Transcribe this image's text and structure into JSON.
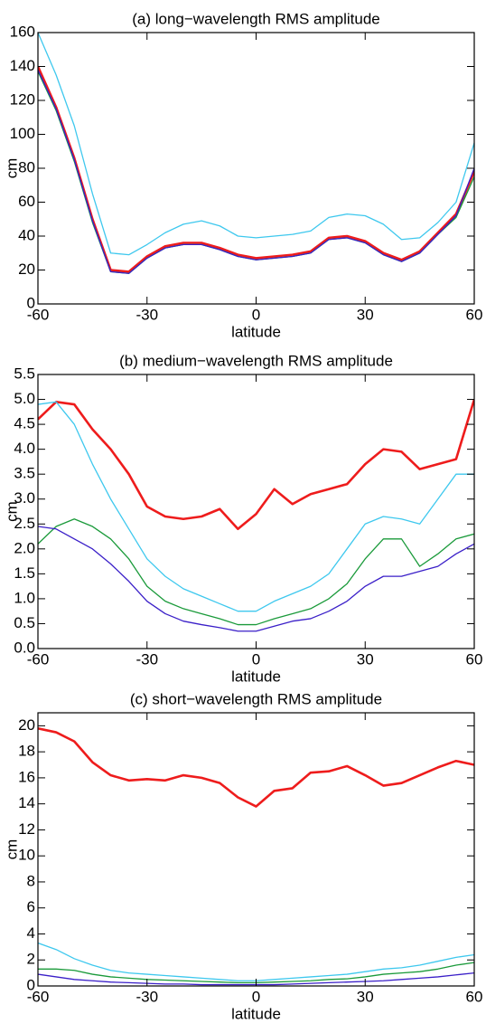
{
  "chart_data": [
    {
      "type": "line",
      "title": "(a) long−wavelength RMS amplitude",
      "xlabel": "latitude",
      "ylabel": "cm",
      "x": [
        -60,
        -55,
        -50,
        -45,
        -40,
        -35,
        -30,
        -25,
        -20,
        -15,
        -10,
        -5,
        0,
        5,
        10,
        15,
        20,
        25,
        30,
        35,
        40,
        45,
        50,
        55,
        60
      ],
      "xlim": [
        -60,
        60
      ],
      "ylim": [
        0,
        160
      ],
      "xticks": [
        -60,
        -30,
        0,
        30,
        60
      ],
      "yticks": [
        0,
        20,
        40,
        60,
        80,
        100,
        120,
        140,
        160
      ],
      "series": [
        {
          "color": "#ee1c1c",
          "values": [
            140,
            116,
            86,
            50,
            20,
            19,
            28,
            34,
            36,
            36,
            33,
            29,
            27,
            28,
            29,
            31,
            39,
            40,
            37,
            30,
            26,
            31,
            42,
            53,
            78
          ]
        },
        {
          "color": "#3ec8ee",
          "values": [
            160,
            135,
            105,
            65,
            30,
            29,
            35,
            42,
            47,
            49,
            46,
            40,
            39,
            40,
            41,
            43,
            51,
            53,
            52,
            47,
            38,
            39,
            48,
            60,
            95
          ]
        },
        {
          "color": "#1a9a3a",
          "values": [
            137,
            114,
            84,
            48,
            19,
            18,
            27,
            33,
            35,
            35,
            32,
            28,
            26,
            27,
            28,
            30,
            38,
            39,
            36,
            29,
            25,
            30,
            41,
            51,
            75
          ]
        },
        {
          "color": "#3a1fc8",
          "values": [
            138,
            115,
            85,
            49,
            19,
            18,
            27,
            33,
            35,
            35,
            32,
            28,
            26,
            27,
            28,
            30,
            38,
            39,
            36,
            29,
            25,
            30,
            41,
            52,
            80
          ]
        }
      ]
    },
    {
      "type": "line",
      "title": "(b) medium−wavelength RMS amplitude",
      "xlabel": "latitude",
      "ylabel": "cm",
      "x": [
        -60,
        -55,
        -50,
        -45,
        -40,
        -35,
        -30,
        -25,
        -20,
        -15,
        -10,
        -5,
        0,
        5,
        10,
        15,
        20,
        25,
        30,
        35,
        40,
        45,
        50,
        55,
        60
      ],
      "xlim": [
        -60,
        60
      ],
      "ylim": [
        0,
        5.5
      ],
      "xticks": [
        -60,
        -30,
        0,
        30,
        60
      ],
      "yticks": [
        {
          "value": 0,
          "label": "0.0"
        },
        0.5,
        {
          "value": 1,
          "label": "1.0"
        },
        1.5,
        {
          "value": 2,
          "label": "2.0"
        },
        2.5,
        {
          "value": 3,
          "label": "3.0"
        },
        3.5,
        {
          "value": 4,
          "label": "4.0"
        },
        4.5,
        {
          "value": 5,
          "label": "5.0"
        },
        5.5
      ],
      "series": [
        {
          "color": "#ee1c1c",
          "values": [
            4.6,
            4.95,
            4.9,
            4.4,
            4.0,
            3.5,
            2.85,
            2.65,
            2.6,
            2.65,
            2.8,
            2.4,
            2.7,
            3.2,
            2.9,
            3.1,
            3.2,
            3.3,
            3.7,
            4.0,
            3.95,
            3.6,
            3.7,
            3.8,
            5.0
          ]
        },
        {
          "color": "#3ec8ee",
          "values": [
            4.9,
            4.95,
            4.5,
            3.7,
            3.0,
            2.4,
            1.8,
            1.45,
            1.2,
            1.05,
            0.9,
            0.75,
            0.75,
            0.95,
            1.1,
            1.25,
            1.5,
            2.0,
            2.5,
            2.65,
            2.6,
            2.5,
            3.0,
            3.5,
            3.5
          ]
        },
        {
          "color": "#1a9a3a",
          "values": [
            2.1,
            2.45,
            2.6,
            2.45,
            2.2,
            1.8,
            1.25,
            0.95,
            0.8,
            0.7,
            0.6,
            0.48,
            0.48,
            0.6,
            0.7,
            0.8,
            1.0,
            1.3,
            1.8,
            2.2,
            2.2,
            1.65,
            1.9,
            2.2,
            2.3
          ]
        },
        {
          "color": "#3a1fc8",
          "values": [
            2.45,
            2.4,
            2.2,
            2.0,
            1.7,
            1.35,
            0.95,
            0.7,
            0.55,
            0.48,
            0.42,
            0.35,
            0.35,
            0.45,
            0.55,
            0.6,
            0.75,
            0.95,
            1.25,
            1.45,
            1.45,
            1.55,
            1.65,
            1.9,
            2.1
          ]
        }
      ]
    },
    {
      "type": "line",
      "title": "(c) short−wavelength RMS amplitude",
      "xlabel": "latitude",
      "ylabel": "cm",
      "x": [
        -60,
        -55,
        -50,
        -45,
        -40,
        -35,
        -30,
        -25,
        -20,
        -15,
        -10,
        -5,
        0,
        5,
        10,
        15,
        20,
        25,
        30,
        35,
        40,
        45,
        50,
        55,
        60
      ],
      "xlim": [
        -60,
        60
      ],
      "ylim": [
        0,
        21
      ],
      "xticks": [
        -60,
        -30,
        0,
        30,
        60
      ],
      "yticks": [
        0,
        2,
        4,
        6,
        8,
        10,
        12,
        14,
        16,
        18,
        20
      ],
      "series": [
        {
          "color": "#ee1c1c",
          "values": [
            19.8,
            19.5,
            18.8,
            17.2,
            16.2,
            15.8,
            15.9,
            15.8,
            16.2,
            16.0,
            15.6,
            14.5,
            13.8,
            15.0,
            15.2,
            16.4,
            16.5,
            16.9,
            16.2,
            15.4,
            15.6,
            16.2,
            16.8,
            17.3,
            17.0
          ]
        },
        {
          "color": "#3ec8ee",
          "values": [
            3.3,
            2.8,
            2.1,
            1.6,
            1.2,
            1.0,
            0.9,
            0.8,
            0.7,
            0.6,
            0.5,
            0.4,
            0.4,
            0.5,
            0.6,
            0.7,
            0.8,
            0.9,
            1.1,
            1.3,
            1.4,
            1.6,
            1.9,
            2.2,
            2.4
          ]
        },
        {
          "color": "#1a9a3a",
          "values": [
            1.3,
            1.3,
            1.2,
            0.9,
            0.7,
            0.6,
            0.5,
            0.45,
            0.4,
            0.35,
            0.3,
            0.25,
            0.25,
            0.3,
            0.35,
            0.4,
            0.5,
            0.55,
            0.7,
            0.9,
            1.0,
            1.1,
            1.3,
            1.6,
            1.8
          ]
        },
        {
          "color": "#3a1fc8",
          "values": [
            0.9,
            0.7,
            0.5,
            0.4,
            0.3,
            0.25,
            0.2,
            0.15,
            0.15,
            0.1,
            0.1,
            0.1,
            0.1,
            0.1,
            0.15,
            0.2,
            0.25,
            0.3,
            0.35,
            0.4,
            0.5,
            0.6,
            0.7,
            0.85,
            1.0
          ]
        }
      ]
    }
  ]
}
